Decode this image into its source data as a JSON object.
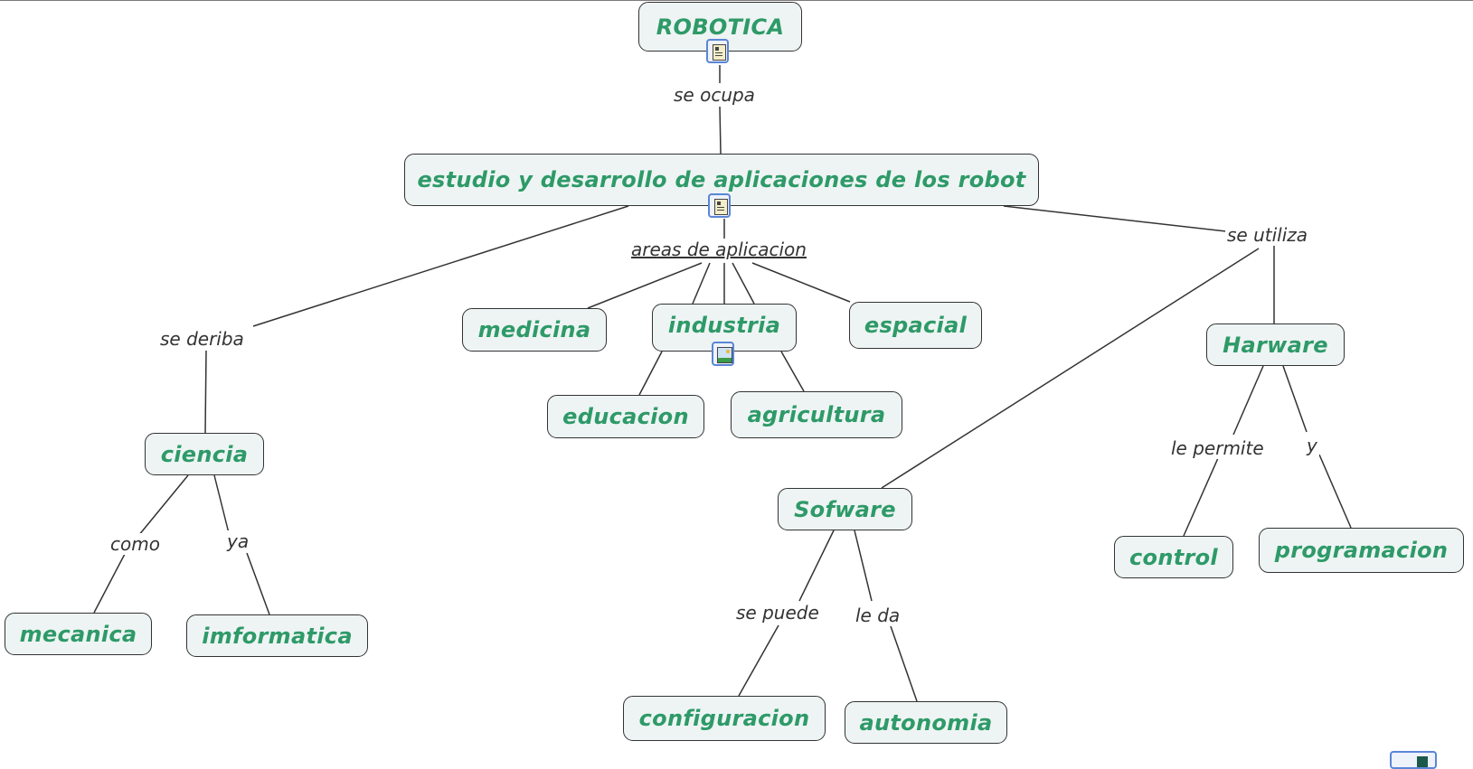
{
  "concepts": {
    "robotica": "ROBOTICA",
    "estudio": "estudio y desarrollo de aplicaciones de los robot",
    "medicina": "medicina",
    "industria": "industria",
    "espacial": "espacial",
    "educacion": "educacion",
    "agricultura": "agricultura",
    "harware": "Harware",
    "ciencia": "ciencia",
    "sofware": "Sofware",
    "control": "control",
    "programacion": "programacion",
    "mecanica": "mecanica",
    "imformatica": "imformatica",
    "configuracion": "configuracion",
    "autonomia": "autonomia"
  },
  "links": {
    "se_ocupa": "se ocupa",
    "areas_de_aplicacion": "areas de aplicacion",
    "se_utiliza": "se utiliza",
    "se_deriba": "se deriba",
    "le_permite": "le permite",
    "y": "y",
    "como": "como",
    "ya": "ya",
    "se_puede": "se puede",
    "le_da": "le da"
  },
  "icons": {
    "robotica": "document-icon",
    "estudio": "document-icon",
    "industria": "image-icon",
    "corner": "resource-icon"
  },
  "colors": {
    "concept_text": "#2e9a68",
    "concept_fill": "#eef4f4",
    "icon_border": "#5a86d6"
  }
}
